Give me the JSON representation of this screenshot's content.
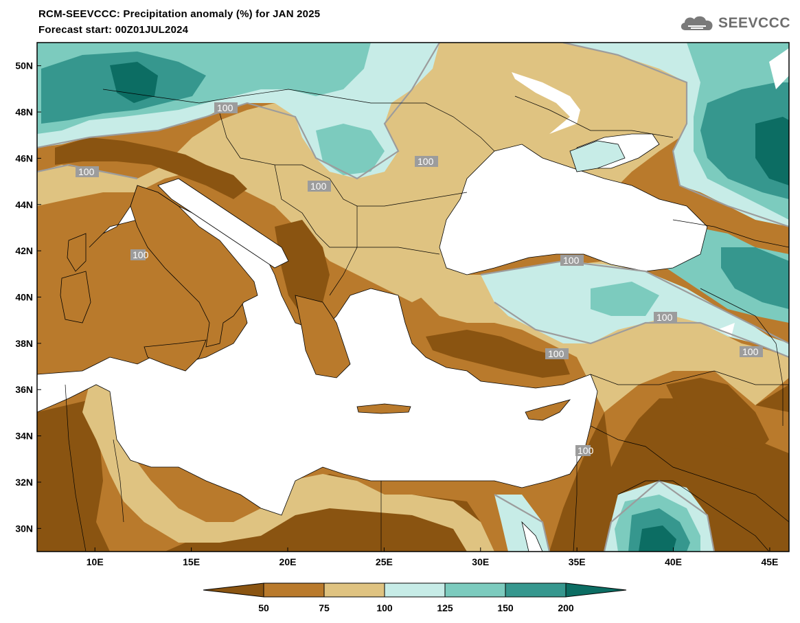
{
  "header": {
    "title": "RCM-SEEVCCC: Precipitation anomaly (%) for JAN 2025",
    "subtitle": "Forecast start: 00Z01JUL2024",
    "logo_text": "SEEVCCC"
  },
  "map": {
    "lon_range": [
      7,
      46
    ],
    "lat_range": [
      29,
      51
    ],
    "lat_ticks": [
      "50N",
      "48N",
      "46N",
      "44N",
      "42N",
      "40N",
      "38N",
      "36N",
      "34N",
      "32N",
      "30N"
    ],
    "lon_ticks": [
      "10E",
      "15E",
      "20E",
      "25E",
      "30E",
      "35E",
      "40E",
      "45E"
    ],
    "contour_labels": [
      "100",
      "100",
      "100",
      "100",
      "100",
      "100",
      "100",
      "100",
      "100",
      "100"
    ]
  },
  "legend": {
    "bins": [
      {
        "color": "#8a5411"
      },
      {
        "color": "#b97a2c"
      },
      {
        "color": "#dfc381"
      },
      {
        "color": "#c7ece7"
      },
      {
        "color": "#7ccbbe"
      },
      {
        "color": "#36978e"
      },
      {
        "color": "#0c6d63"
      }
    ],
    "labels": [
      "50",
      "75",
      "100",
      "125",
      "150",
      "200"
    ]
  },
  "colors": {
    "sea": "#ffffff",
    "dry_strong": "#8a5411",
    "dry": "#b97a2c",
    "dry_light": "#dfc381",
    "wet_light": "#c7ece7",
    "wet": "#7ccbbe",
    "wet_strong": "#36978e",
    "wet_very": "#0c6d63"
  }
}
